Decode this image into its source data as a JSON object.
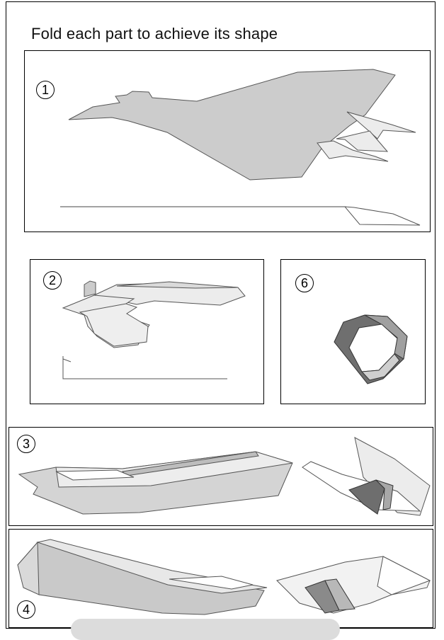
{
  "title": "Fold each part to achieve its shape",
  "parts": [
    {
      "number": "1"
    },
    {
      "number": "2"
    },
    {
      "number": "6"
    },
    {
      "number": "3"
    },
    {
      "number": "4"
    }
  ],
  "colors": {
    "light_grey": "#ececec",
    "mid_grey": "#cccccc",
    "dark_grey": "#7a7a7a",
    "outline": "#555555"
  }
}
